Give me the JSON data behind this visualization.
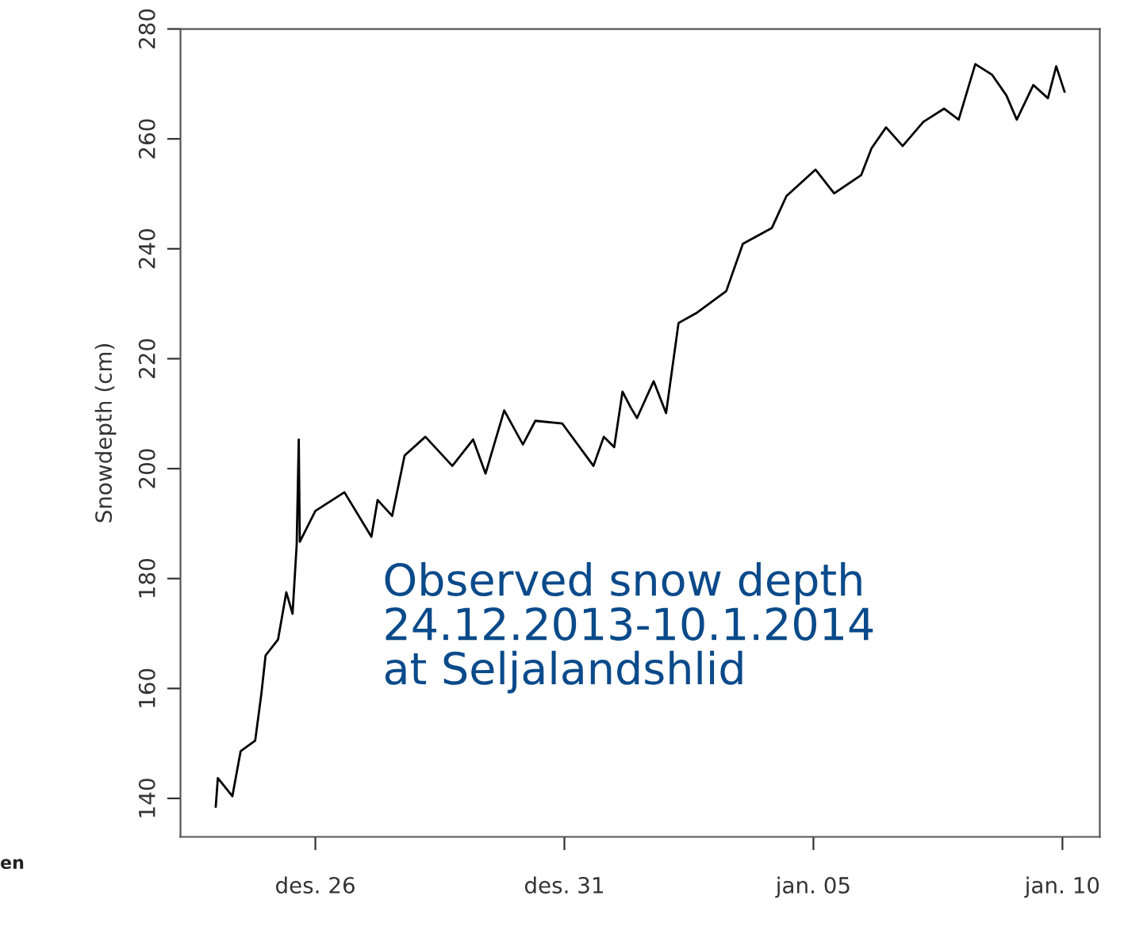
{
  "chart_data": {
    "type": "line",
    "ylabel": "Snowdepth (cm)",
    "annotations": [
      "Observed snow depth\n24.12.2013-10.1.2014\nat Seljalandshlid",
      "en"
    ],
    "x": [
      "2013-12-24T00:00",
      "2013-12-24T01:00",
      "2013-12-24T08:00",
      "2013-12-24T12:00",
      "2013-12-24T19:00",
      "2013-12-24T22:00",
      "2013-12-25T00:00",
      "2013-12-25T06:00",
      "2013-12-25T10:00",
      "2013-12-25T13:00",
      "2013-12-25T15:00",
      "2013-12-25T16:00",
      "2013-12-25T16:30",
      "2013-12-26T00:00",
      "2013-12-26T14:00",
      "2013-12-27T03:00",
      "2013-12-27T06:00",
      "2013-12-27T13:00",
      "2013-12-27T19:00",
      "2013-12-28T05:00",
      "2013-12-28T18:00",
      "2013-12-29T04:00",
      "2013-12-29T10:00",
      "2013-12-29T19:00",
      "2013-12-30T04:00",
      "2013-12-30T10:00",
      "2013-12-30T23:00",
      "2013-12-31T14:00",
      "2013-12-31T19:00",
      "2014-01-01T00:00",
      "2014-01-01T04:00",
      "2014-01-01T08:00",
      "2014-01-01T11:00",
      "2014-01-01T19:00",
      "2014-01-02T01:00",
      "2014-01-02T07:00",
      "2014-01-02T16:00",
      "2014-01-03T06:00",
      "2014-01-03T14:00",
      "2014-01-04T04:00",
      "2014-01-04T11:00",
      "2014-01-05T01:00",
      "2014-01-05T10:00",
      "2014-01-05T23:00",
      "2014-01-06T04:00",
      "2014-01-06T11:00",
      "2014-01-06T19:00",
      "2014-01-07T05:00",
      "2014-01-07T15:00",
      "2014-01-07T22:00",
      "2014-01-08T06:00",
      "2014-01-08T14:00",
      "2014-01-08T21:00",
      "2014-01-09T02:00",
      "2014-01-09T10:00",
      "2014-01-09T17:00",
      "2014-01-09T21:00",
      "2014-01-10T01:00"
    ],
    "series": [
      {
        "color": "#000000",
        "values": [
          138.5,
          143.7,
          140.4,
          148.6,
          150.5,
          159.1,
          166,
          168.9,
          177.5,
          173.6,
          186.2,
          205.3,
          186.7,
          192.3,
          195.7,
          187.6,
          194.3,
          191.4,
          202.4,
          205.8,
          200.5,
          205.3,
          199.1,
          210.6,
          204.4,
          208.7,
          208.2,
          200.5,
          205.8,
          203.9,
          214.0,
          211.1,
          209.2,
          215.9,
          210.1,
          226.5,
          228.4,
          232.3,
          240.9,
          243.8,
          249.6,
          254.4,
          250.1,
          253.4,
          258.3,
          262.1,
          258.7,
          263.1,
          265.5,
          263.5,
          273.6,
          271.7,
          267.9,
          263.5,
          269.8,
          267.4,
          273.2,
          268.6
        ]
      }
    ],
    "xlim": [
      "2013-12-23T07:00",
      "2014-01-10T18:00"
    ],
    "xticks": [
      {
        "value": "2013-12-26",
        "label": "des. 26"
      },
      {
        "value": "2013-12-31",
        "label": "des. 31"
      },
      {
        "value": "2014-01-05",
        "label": "jan. 05"
      },
      {
        "value": "2014-01-10",
        "label": "jan. 10"
      }
    ],
    "ylim": [
      133,
      280
    ],
    "yticks": [
      140,
      160,
      180,
      200,
      220,
      240,
      260,
      280
    ],
    "grid": false,
    "marker": "none",
    "line_style": "solid"
  }
}
